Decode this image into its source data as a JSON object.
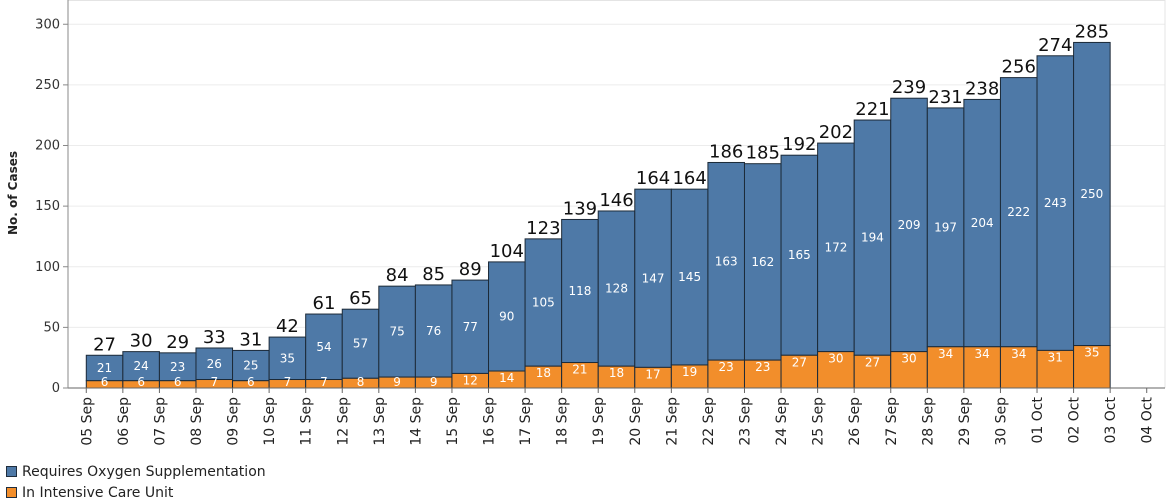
{
  "chart_data": {
    "type": "bar",
    "stacked": true,
    "ylabel": "No. of Cases",
    "xlabel": "",
    "ylim": [
      0,
      320
    ],
    "yticks": [
      0,
      50,
      100,
      150,
      200,
      250,
      300
    ],
    "grid": true,
    "legend_position": "bottom-left",
    "tick_labels": [
      "05 Sep",
      "06 Sep",
      "07 Sep",
      "08 Sep",
      "09 Sep",
      "10 Sep",
      "11 Sep",
      "12 Sep",
      "13 Sep",
      "14 Sep",
      "15 Sep",
      "16 Sep",
      "17 Sep",
      "18 Sep",
      "19 Sep",
      "20 Sep",
      "21 Sep",
      "22 Sep",
      "23 Sep",
      "24 Sep",
      "25 Sep",
      "26 Sep",
      "27 Sep",
      "28 Sep",
      "29 Sep",
      "30 Sep",
      "01 Oct",
      "02 Oct",
      "03 Oct",
      "04 Oct"
    ],
    "categories": [
      "06 Sep",
      "07 Sep",
      "08 Sep",
      "09 Sep",
      "10 Sep",
      "11 Sep",
      "12 Sep",
      "13 Sep",
      "14 Sep",
      "15 Sep",
      "16 Sep",
      "17 Sep",
      "18 Sep",
      "19 Sep",
      "20 Sep",
      "21 Sep",
      "22 Sep",
      "23 Sep",
      "24 Sep",
      "25 Sep",
      "26 Sep",
      "27 Sep",
      "28 Sep",
      "29 Sep",
      "30 Sep",
      "01 Oct",
      "02 Oct",
      "03 Oct"
    ],
    "series": [
      {
        "name": "In Intensive Care Unit",
        "color": "#f28e2b",
        "values": [
          6,
          6,
          6,
          7,
          6,
          7,
          7,
          8,
          9,
          9,
          12,
          14,
          18,
          21,
          18,
          17,
          19,
          23,
          23,
          27,
          30,
          27,
          30,
          34,
          34,
          34,
          31,
          35
        ]
      },
      {
        "name": "Requires Oxygen Supplementation",
        "color": "#4e79a7",
        "values": [
          21,
          24,
          23,
          26,
          25,
          35,
          54,
          57,
          75,
          76,
          77,
          90,
          105,
          118,
          128,
          147,
          145,
          163,
          162,
          165,
          172,
          194,
          209,
          197,
          204,
          222,
          243,
          250
        ]
      }
    ],
    "totals": [
      27,
      30,
      29,
      33,
      31,
      42,
      61,
      65,
      84,
      85,
      89,
      104,
      123,
      139,
      146,
      164,
      164,
      186,
      185,
      192,
      202,
      221,
      239,
      231,
      238,
      256,
      274,
      285
    ]
  },
  "legend": [
    {
      "label": "Requires Oxygen Supplementation",
      "color": "#4e79a7"
    },
    {
      "label": "In Intensive Care Unit",
      "color": "#f28e2b"
    }
  ]
}
